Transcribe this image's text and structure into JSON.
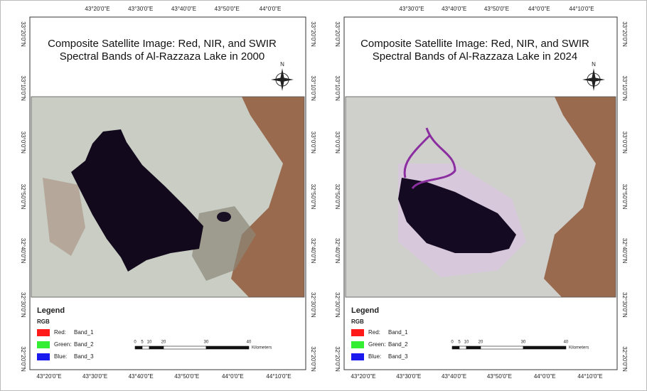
{
  "panels": [
    {
      "title_lines": [
        "Composite Satellite Image: Red, NIR, and SWIR",
        "Spectral Bands of  Al-Razzaza Lake in 2000"
      ],
      "lon_top": [
        "43°20'0\"E",
        "43°30'0\"E",
        "43°40'0\"E",
        "43°50'0\"E",
        "44°0'0\"E"
      ],
      "lon_bottom": [
        "43°20'0\"E",
        "43°30'0\"E",
        "43°40'0\"E",
        "43°50'0\"E",
        "44°0'0\"E",
        "44°10'0\"E"
      ],
      "lat_left": [
        "33°20'0\"N",
        "33°10'0\"N",
        "33°0'0\"N",
        "32°50'0\"N",
        "32°40'0\"N",
        "32°30'0\"N",
        "32°20'0\"N"
      ],
      "lat_right": [
        "33°20'0\"N",
        "33°10'0\"N",
        "33°0'0\"N",
        "32°50'0\"N",
        "32°40'0\"N",
        "32°30'0\"N",
        "32°20'0\"N"
      ],
      "north": "N",
      "legend": {
        "title": "Legend",
        "group": "RGB",
        "items": [
          {
            "channel": "Red:",
            "band": "Band_1"
          },
          {
            "channel": "Green:",
            "band": "Band_2"
          },
          {
            "channel": "Blue:",
            "band": "Band_3"
          }
        ]
      },
      "scale": {
        "ticks": [
          "0",
          "5",
          "10",
          "20",
          "30",
          "40"
        ],
        "unit": "Kilometers"
      }
    },
    {
      "title_lines": [
        "Composite Satellite Image: Red, NIR, and SWIR",
        "Spectral Bands of  Al-Razzaza Lake in 2024"
      ],
      "lon_top": [
        "43°30'0\"E",
        "43°40'0\"E",
        "43°50'0\"E",
        "44°0'0\"E",
        "44°10'0\"E"
      ],
      "lon_bottom": [
        "43°20'0\"E",
        "43°30'0\"E",
        "43°40'0\"E",
        "43°50'0\"E",
        "44°0'0\"E",
        "44°10'0\"E"
      ],
      "lat_left": [
        "33°20'0\"N",
        "33°10'0\"N",
        "33°0'0\"N",
        "32°50'0\"N",
        "32°40'0\"N",
        "32°30'0\"N",
        "32°20'0\"N"
      ],
      "lat_right": [
        "33°20'0\"N",
        "33°10'0\"N",
        "33°0'0\"N",
        "32°50'0\"N",
        "32°40'0\"N",
        "32°30'0\"N",
        "32°20'0\"N"
      ],
      "north": "N",
      "legend": {
        "title": "Legend",
        "group": "RGB",
        "items": [
          {
            "channel": "Red:",
            "band": "Band_1"
          },
          {
            "channel": "Green:",
            "band": "Band_2"
          },
          {
            "channel": "Blue:",
            "band": "Band_3"
          }
        ]
      },
      "scale": {
        "ticks": [
          "0",
          "5",
          "10",
          "20",
          "30",
          "40"
        ],
        "unit": "Kilometers"
      }
    }
  ]
}
